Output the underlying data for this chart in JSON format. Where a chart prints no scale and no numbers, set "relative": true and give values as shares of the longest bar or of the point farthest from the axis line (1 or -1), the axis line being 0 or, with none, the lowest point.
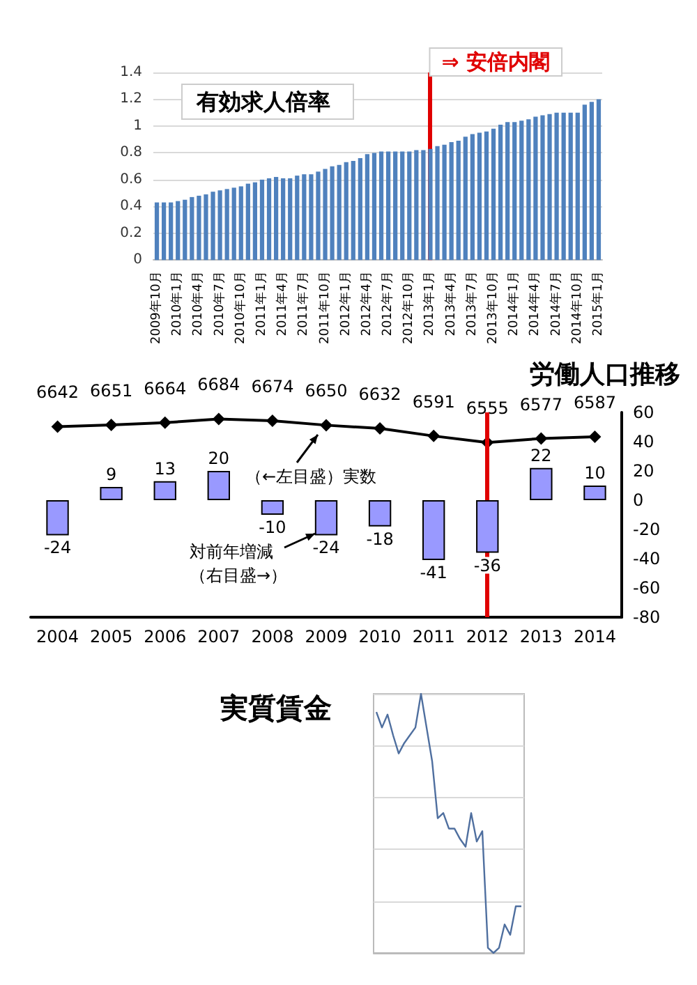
{
  "chart_data": [
    {
      "type": "bar",
      "title": "有効求人倍率",
      "categories": [
        "2009年10月",
        null,
        null,
        "2010年1月",
        null,
        null,
        "2010年4月",
        null,
        null,
        "2010年7月",
        null,
        null,
        "2010年10月",
        null,
        null,
        "2011年1月",
        null,
        null,
        "2011年4月",
        null,
        null,
        "2011年7月",
        null,
        null,
        "2011年10月",
        null,
        null,
        "2012年1月",
        null,
        null,
        "2012年4月",
        null,
        null,
        "2012年7月",
        null,
        null,
        "2012年10月",
        null,
        null,
        "2013年1月",
        null,
        null,
        "2013年4月",
        null,
        null,
        "2013年7月",
        null,
        null,
        "2013年10月",
        null,
        null,
        "2014年1月",
        null,
        null,
        "2014年4月",
        null,
        null,
        "2014年7月",
        null,
        null,
        "2014年10月",
        null,
        null,
        "2015年1月"
      ],
      "values": [
        0.43,
        0.43,
        0.43,
        0.44,
        0.45,
        0.47,
        0.48,
        0.49,
        0.51,
        0.52,
        0.53,
        0.54,
        0.55,
        0.57,
        0.58,
        0.6,
        0.61,
        0.62,
        0.61,
        0.61,
        0.63,
        0.64,
        0.64,
        0.66,
        0.68,
        0.7,
        0.71,
        0.73,
        0.74,
        0.76,
        0.79,
        0.8,
        0.81,
        0.81,
        0.81,
        0.81,
        0.81,
        0.82,
        0.82,
        0.83,
        0.85,
        0.86,
        0.88,
        0.89,
        0.92,
        0.94,
        0.95,
        0.96,
        0.98,
        1.01,
        1.03,
        1.03,
        1.04,
        1.05,
        1.07,
        1.08,
        1.09,
        1.1,
        1.1,
        1.1,
        1.1,
        1.16,
        1.18,
        1.2
      ],
      "color": "#4f81bd",
      "ylim": [
        0,
        1.4
      ],
      "yticks": [
        0,
        0.2,
        0.4,
        0.6,
        0.8,
        1,
        1.2,
        1.4
      ],
      "grid": "y",
      "ref_lines": [
        {
          "axis": "x",
          "value": "2013年1月",
          "label": "⇒ 安倍内閣",
          "color": "#e00000"
        }
      ]
    },
    {
      "type": "bar",
      "title": "労働人口推移",
      "categories": [
        "2004",
        "2005",
        "2006",
        "2007",
        "2008",
        "2009",
        "2010",
        "2011",
        "2012",
        "2013",
        "2014"
      ],
      "series": [
        {
          "type": "line",
          "color": "#000000",
          "values": [
            6642,
            6651,
            6664,
            6684,
            6674,
            6650,
            6632,
            6591,
            6555,
            6577,
            6587
          ]
        },
        {
          "axis": "y2",
          "color": "#9999ff",
          "values": [
            -24,
            9,
            13,
            20,
            -10,
            -24,
            -18,
            -41,
            -36,
            22,
            10
          ]
        }
      ],
      "ylim": [
        5600,
        6720
      ],
      "y2lim": [
        -80,
        60
      ],
      "y2ticks": [
        -80,
        -60,
        -40,
        -20,
        0,
        20,
        40,
        60
      ],
      "data_labels": true,
      "marker": "diamond",
      "annotations": [
        "（←左目盛）実数",
        "対前年増減",
        "（右目盛→）"
      ],
      "ref_lines": [
        {
          "axis": "x",
          "value": "2012",
          "color": "#e00000"
        }
      ]
    },
    {
      "type": "line",
      "title": "実質賃金",
      "relative": true,
      "color": "#4f6f9f",
      "grid": "y",
      "categories": [
        null,
        null,
        null,
        null,
        null,
        null,
        null,
        null,
        null,
        null,
        null,
        null,
        null,
        null,
        null,
        null,
        null,
        null,
        null,
        null,
        null,
        null,
        null,
        null,
        null,
        null,
        null
      ],
      "values": [
        0.93,
        0.87,
        0.92,
        0.84,
        0.77,
        0.81,
        0.84,
        0.87,
        1,
        0.87,
        0.74,
        0.52,
        0.54,
        0.48,
        0.48,
        0.44,
        0.41,
        0.54,
        0.43,
        0.47,
        0.02,
        0,
        0.02,
        0.11,
        0.07,
        0.18,
        0.18
      ]
    }
  ]
}
